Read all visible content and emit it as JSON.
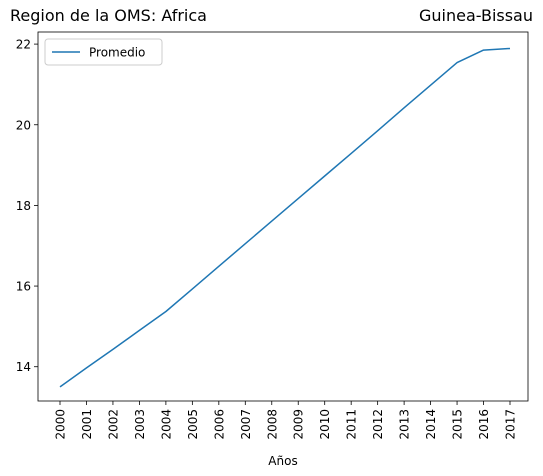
{
  "chart_data": {
    "type": "line",
    "title_left": "Region de la OMS: Africa",
    "title_right": "Guinea-Bissau",
    "xlabel": "Años",
    "ylabel": "",
    "ylim": [
      13.15,
      22.3
    ],
    "yticks": [
      14,
      16,
      18,
      20,
      22
    ],
    "legend_position": "top-left",
    "grid": false,
    "colors": {
      "line": "#1f77b4"
    },
    "categories": [
      "2000",
      "2001",
      "2002",
      "2003",
      "2004",
      "2005",
      "2006",
      "2007",
      "2008",
      "2009",
      "2010",
      "2011",
      "2012",
      "2013",
      "2014",
      "2015",
      "2016",
      "2017"
    ],
    "series": [
      {
        "name": "Promedio",
        "values": [
          13.5,
          13.97,
          14.43,
          14.9,
          15.37,
          15.93,
          16.49,
          17.05,
          17.61,
          18.17,
          18.73,
          19.29,
          19.85,
          20.42,
          20.98,
          21.54,
          21.85,
          21.89
        ]
      }
    ]
  }
}
